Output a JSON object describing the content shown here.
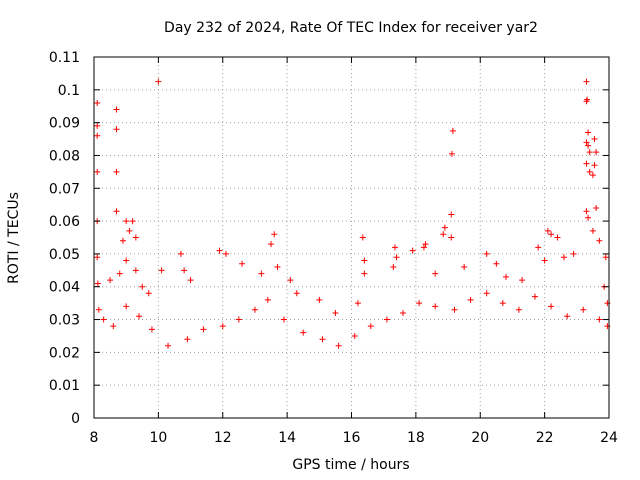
{
  "chart_data": {
    "type": "scatter",
    "title": "Day 232 of 2024, Rate Of TEC Index for receiver yar2",
    "xlabel": "GPS time / hours",
    "ylabel": "ROTI / TECUs",
    "xlim": [
      8,
      24
    ],
    "ylim": [
      0,
      0.11
    ],
    "xticks": [
      8,
      10,
      12,
      14,
      16,
      18,
      20,
      22,
      24
    ],
    "xtick_labels": [
      "8",
      "10",
      "12",
      "14",
      "16",
      "18",
      "20",
      "22",
      "24"
    ],
    "yticks": [
      0,
      0.01,
      0.02,
      0.03,
      0.04,
      0.05,
      0.06,
      0.07,
      0.08,
      0.09,
      0.1,
      0.11
    ],
    "ytick_labels": [
      "0",
      "0.01",
      "0.02",
      "0.03",
      "0.04",
      "0.05",
      "0.06",
      "0.07",
      "0.08",
      "0.09",
      "0.1",
      "0.11"
    ],
    "grid": true,
    "marker": "+",
    "color": "#ff0000",
    "series": [
      {
        "name": "ROTI",
        "points": [
          [
            8.1,
            0.096
          ],
          [
            8.1,
            0.089
          ],
          [
            8.1,
            0.086
          ],
          [
            8.1,
            0.075
          ],
          [
            8.1,
            0.06
          ],
          [
            8.1,
            0.049
          ],
          [
            8.12,
            0.041
          ],
          [
            8.15,
            0.033
          ],
          [
            8.7,
            0.094
          ],
          [
            8.7,
            0.088
          ],
          [
            8.7,
            0.075
          ],
          [
            8.7,
            0.063
          ],
          [
            9.0,
            0.06
          ],
          [
            9.1,
            0.057
          ],
          [
            9.2,
            0.06
          ],
          [
            8.9,
            0.054
          ],
          [
            9.3,
            0.055
          ],
          [
            9.0,
            0.048
          ],
          [
            9.3,
            0.045
          ],
          [
            10.0,
            0.1025
          ],
          [
            8.5,
            0.042
          ],
          [
            8.8,
            0.044
          ],
          [
            9.5,
            0.04
          ],
          [
            9.7,
            0.038
          ],
          [
            10.1,
            0.045
          ],
          [
            10.7,
            0.05
          ],
          [
            10.8,
            0.045
          ],
          [
            11.0,
            0.042
          ],
          [
            11.9,
            0.051
          ],
          [
            12.1,
            0.05
          ],
          [
            12.6,
            0.047
          ],
          [
            13.2,
            0.044
          ],
          [
            13.6,
            0.056
          ],
          [
            13.5,
            0.053
          ],
          [
            13.7,
            0.046
          ],
          [
            14.1,
            0.042
          ],
          [
            14.3,
            0.038
          ],
          [
            15.0,
            0.036
          ],
          [
            15.5,
            0.032
          ],
          [
            16.35,
            0.055
          ],
          [
            16.4,
            0.048
          ],
          [
            16.4,
            0.044
          ],
          [
            16.2,
            0.035
          ],
          [
            17.35,
            0.052
          ],
          [
            17.4,
            0.049
          ],
          [
            17.3,
            0.046
          ],
          [
            17.9,
            0.051
          ],
          [
            18.3,
            0.053
          ],
          [
            18.25,
            0.052
          ],
          [
            18.6,
            0.044
          ],
          [
            18.9,
            0.058
          ],
          [
            18.85,
            0.056
          ],
          [
            19.1,
            0.062
          ],
          [
            19.1,
            0.055
          ],
          [
            19.15,
            0.0875
          ],
          [
            19.12,
            0.0805
          ],
          [
            19.5,
            0.046
          ],
          [
            20.2,
            0.05
          ],
          [
            20.5,
            0.047
          ],
          [
            20.8,
            0.043
          ],
          [
            21.3,
            0.042
          ],
          [
            21.8,
            0.052
          ],
          [
            22.1,
            0.057
          ],
          [
            22.2,
            0.056
          ],
          [
            22.4,
            0.055
          ],
          [
            22.0,
            0.048
          ],
          [
            22.6,
            0.049
          ],
          [
            22.9,
            0.05
          ],
          [
            23.3,
            0.1025
          ],
          [
            23.3,
            0.0965
          ],
          [
            23.32,
            0.097
          ],
          [
            23.35,
            0.087
          ],
          [
            23.4,
            0.081
          ],
          [
            23.3,
            0.084
          ],
          [
            23.35,
            0.083
          ],
          [
            23.3,
            0.0775
          ],
          [
            23.4,
            0.075
          ],
          [
            23.5,
            0.074
          ],
          [
            23.55,
            0.085
          ],
          [
            23.6,
            0.081
          ],
          [
            23.55,
            0.077
          ],
          [
            23.6,
            0.064
          ],
          [
            23.3,
            0.063
          ],
          [
            23.35,
            0.061
          ],
          [
            23.5,
            0.057
          ],
          [
            23.7,
            0.054
          ],
          [
            23.9,
            0.049
          ],
          [
            23.85,
            0.04
          ],
          [
            23.95,
            0.035
          ],
          [
            8.3,
            0.03
          ],
          [
            8.6,
            0.028
          ],
          [
            9.0,
            0.034
          ],
          [
            9.4,
            0.031
          ],
          [
            9.8,
            0.027
          ],
          [
            10.3,
            0.022
          ],
          [
            10.9,
            0.024
          ],
          [
            11.4,
            0.027
          ],
          [
            12.0,
            0.028
          ],
          [
            12.5,
            0.03
          ],
          [
            13.0,
            0.033
          ],
          [
            13.4,
            0.036
          ],
          [
            13.9,
            0.03
          ],
          [
            14.5,
            0.026
          ],
          [
            15.1,
            0.024
          ],
          [
            15.6,
            0.022
          ],
          [
            16.1,
            0.025
          ],
          [
            16.6,
            0.028
          ],
          [
            17.1,
            0.03
          ],
          [
            17.6,
            0.032
          ],
          [
            18.1,
            0.035
          ],
          [
            18.6,
            0.034
          ],
          [
            19.2,
            0.033
          ],
          [
            19.7,
            0.036
          ],
          [
            20.2,
            0.038
          ],
          [
            20.7,
            0.035
          ],
          [
            21.2,
            0.033
          ],
          [
            21.7,
            0.037
          ],
          [
            22.2,
            0.034
          ],
          [
            22.7,
            0.031
          ],
          [
            23.2,
            0.033
          ],
          [
            23.7,
            0.03
          ],
          [
            23.95,
            0.028
          ]
        ]
      }
    ]
  }
}
